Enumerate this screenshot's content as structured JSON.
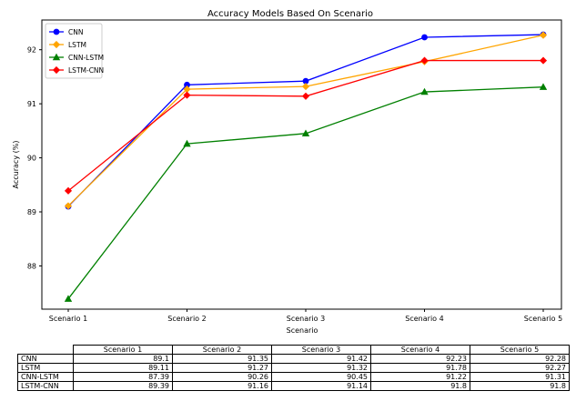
{
  "chart_data": {
    "type": "line",
    "title": "Accuracy Models Based On Scenario",
    "xlabel": "Scenario",
    "ylabel": "Accuracy (%)",
    "categories": [
      "Scenario 1",
      "Scenario 2",
      "Scenario 3",
      "Scenario 4",
      "Scenario 5"
    ],
    "ylim": [
      87.2,
      92.55
    ],
    "yticks": [
      88,
      89,
      90,
      91,
      92
    ],
    "grid": false,
    "legend_position": "top-left",
    "series": [
      {
        "name": "CNN",
        "color": "#0000ff",
        "marker": "circle",
        "values": [
          89.1,
          91.35,
          91.42,
          92.23,
          92.28
        ]
      },
      {
        "name": "LSTM",
        "color": "#ffa500",
        "marker": "diamond",
        "values": [
          89.11,
          91.27,
          91.32,
          91.78,
          92.27
        ]
      },
      {
        "name": "CNN-LSTM",
        "color": "#008000",
        "marker": "triangle",
        "values": [
          87.39,
          90.26,
          90.45,
          91.22,
          91.31
        ]
      },
      {
        "name": "LSTM-CNN",
        "color": "#ff0000",
        "marker": "diamond",
        "values": [
          89.39,
          91.16,
          91.14,
          91.8,
          91.8
        ]
      }
    ]
  },
  "table": {
    "headers": [
      "Scenario 1",
      "Scenario 2",
      "Scenario 3",
      "Scenario 4",
      "Scenario 5"
    ],
    "rows": [
      {
        "label": "CNN",
        "cells": [
          "89.1",
          "91.35",
          "91.42",
          "92.23",
          "92.28"
        ]
      },
      {
        "label": "LSTM",
        "cells": [
          "89.11",
          "91.27",
          "91.32",
          "91.78",
          "92.27"
        ]
      },
      {
        "label": "CNN-LSTM",
        "cells": [
          "87.39",
          "90.26",
          "90.45",
          "91.22",
          "91.31"
        ]
      },
      {
        "label": "LSTM-CNN",
        "cells": [
          "89.39",
          "91.16",
          "91.14",
          "91.8",
          "91.8"
        ]
      }
    ]
  }
}
